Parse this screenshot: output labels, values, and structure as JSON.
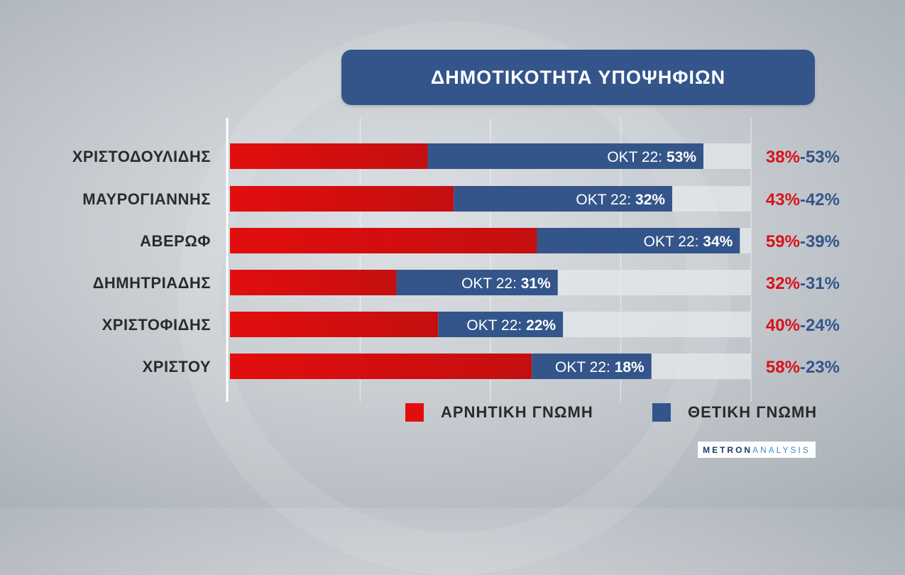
{
  "title": "ΔΗΜΟΤΙΚΟΤΗΤΑ ΥΠΟΨΗΦΙΩΝ",
  "brand": {
    "part1": "METRON",
    "part2": "ANALYSIS"
  },
  "colors": {
    "negative": "#e20e0e",
    "positive": "#34558a",
    "track": "#e6e8ea"
  },
  "legend": [
    {
      "label": "ΑΡΝΗΤΙΚΗ ΓΝΩΜΗ",
      "color": "#e20e0e"
    },
    {
      "label": "ΘΕΤΙΚΗ ΓΝΩΜΗ",
      "color": "#34558a"
    }
  ],
  "chart_data": {
    "type": "bar",
    "orientation": "horizontal",
    "stacked": true,
    "categories": [
      "ΧΡΙΣΤΟΔΟΥΛΙΔΗΣ",
      "ΜΑΥΡΟΓΙΑΝΝΗΣ",
      "ΑΒΕΡΩΦ",
      "ΔΗΜΗΤΡΙΑΔΗΣ",
      "ΧΡΙΣΤΟΦΙΔΗΣ",
      "ΧΡΙΣΤΟΥ"
    ],
    "series": [
      {
        "name": "ΑΡΝΗΤΙΚΗ ΓΝΩΜΗ",
        "values": [
          38,
          43,
          59,
          32,
          40,
          58
        ]
      },
      {
        "name": "ΘΕΤΙΚΗ ΓΝΩΜΗ",
        "values": [
          53,
          42,
          39,
          31,
          24,
          23
        ]
      }
    ],
    "segment_label_prefix": "ΟΚΤ 22:",
    "segment_label_values": [
      "53%",
      "32%",
      "34%",
      "31%",
      "22%",
      "18%"
    ],
    "right_labels": [
      {
        "neg": "38%",
        "pos": "53%"
      },
      {
        "neg": "43%",
        "pos": "42%"
      },
      {
        "neg": "59%",
        "pos": "39%"
      },
      {
        "neg": "32%",
        "pos": "31%"
      },
      {
        "neg": "40%",
        "pos": "24%"
      },
      {
        "neg": "58%",
        "pos": "23%"
      }
    ],
    "separator": "-",
    "xlim": [
      0,
      100
    ],
    "grid": true
  }
}
